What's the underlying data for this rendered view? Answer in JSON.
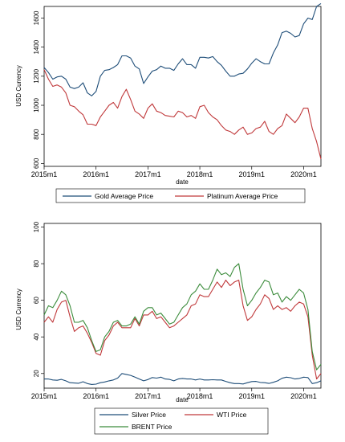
{
  "chart_data": [
    {
      "type": "line",
      "title": "",
      "xlabel": "date",
      "ylabel": "USD Currency",
      "x_range": [
        "2015-01",
        "2020-05"
      ],
      "ylim": [
        580,
        1680
      ],
      "x_ticks": [
        "2015m1",
        "2016m1",
        "2017m1",
        "2018m1",
        "2019m1",
        "2020m1"
      ],
      "y_ticks": [
        "600",
        "800",
        "1000",
        "1200",
        "1400",
        "1600"
      ],
      "grid": false,
      "legend_position": "bottom",
      "x": [
        "2015-01",
        "2015-02",
        "2015-03",
        "2015-04",
        "2015-05",
        "2015-06",
        "2015-07",
        "2015-08",
        "2015-09",
        "2015-10",
        "2015-11",
        "2015-12",
        "2016-01",
        "2016-02",
        "2016-03",
        "2016-04",
        "2016-05",
        "2016-06",
        "2016-07",
        "2016-08",
        "2016-09",
        "2016-10",
        "2016-11",
        "2016-12",
        "2017-01",
        "2017-02",
        "2017-03",
        "2017-04",
        "2017-05",
        "2017-06",
        "2017-07",
        "2017-08",
        "2017-09",
        "2017-10",
        "2017-11",
        "2017-12",
        "2018-01",
        "2018-02",
        "2018-03",
        "2018-04",
        "2018-05",
        "2018-06",
        "2018-07",
        "2018-08",
        "2018-09",
        "2018-10",
        "2018-11",
        "2018-12",
        "2019-01",
        "2019-02",
        "2019-03",
        "2019-04",
        "2019-05",
        "2019-06",
        "2019-07",
        "2019-08",
        "2019-09",
        "2019-10",
        "2019-11",
        "2019-12",
        "2020-01",
        "2020-02",
        "2020-03",
        "2020-04",
        "2020-05"
      ],
      "series": [
        {
          "name": "Gold Average Price",
          "color": "#1f4e79",
          "values": [
            1260,
            1225,
            1180,
            1195,
            1200,
            1180,
            1125,
            1115,
            1125,
            1155,
            1085,
            1065,
            1095,
            1200,
            1240,
            1245,
            1260,
            1280,
            1340,
            1340,
            1325,
            1270,
            1250,
            1150,
            1195,
            1235,
            1245,
            1270,
            1255,
            1255,
            1240,
            1285,
            1320,
            1280,
            1280,
            1255,
            1330,
            1330,
            1325,
            1335,
            1300,
            1275,
            1235,
            1200,
            1200,
            1215,
            1220,
            1250,
            1290,
            1320,
            1300,
            1285,
            1285,
            1360,
            1415,
            1500,
            1510,
            1495,
            1470,
            1480,
            1560,
            1600,
            1590,
            1680,
            1700
          ]
        },
        {
          "name": "Platinum Average Price",
          "color": "#c0393b",
          "values": [
            1245,
            1180,
            1130,
            1140,
            1125,
            1085,
            1000,
            990,
            960,
            935,
            870,
            870,
            860,
            920,
            960,
            1000,
            1020,
            980,
            1060,
            1110,
            1040,
            960,
            940,
            910,
            980,
            1010,
            960,
            950,
            930,
            925,
            920,
            960,
            950,
            920,
            930,
            910,
            990,
            1000,
            950,
            920,
            900,
            860,
            830,
            820,
            800,
            830,
            850,
            800,
            810,
            840,
            850,
            890,
            820,
            800,
            840,
            860,
            940,
            910,
            880,
            920,
            980,
            980,
            840,
            750,
            630
          ]
        }
      ]
    },
    {
      "type": "line",
      "title": "",
      "xlabel": "date",
      "ylabel": "USD Currency",
      "x_range": [
        "2015-01",
        "2020-05"
      ],
      "ylim": [
        12,
        102
      ],
      "x_ticks": [
        "2015m1",
        "2016m1",
        "2017m1",
        "2018m1",
        "2019m1",
        "2020m1"
      ],
      "y_ticks": [
        "20",
        "40",
        "60",
        "80",
        "100"
      ],
      "grid": false,
      "legend_position": "bottom",
      "x": [
        "2015-01",
        "2015-02",
        "2015-03",
        "2015-04",
        "2015-05",
        "2015-06",
        "2015-07",
        "2015-08",
        "2015-09",
        "2015-10",
        "2015-11",
        "2015-12",
        "2016-01",
        "2016-02",
        "2016-03",
        "2016-04",
        "2016-05",
        "2016-06",
        "2016-07",
        "2016-08",
        "2016-09",
        "2016-10",
        "2016-11",
        "2016-12",
        "2017-01",
        "2017-02",
        "2017-03",
        "2017-04",
        "2017-05",
        "2017-06",
        "2017-07",
        "2017-08",
        "2017-09",
        "2017-10",
        "2017-11",
        "2017-12",
        "2018-01",
        "2018-02",
        "2018-03",
        "2018-04",
        "2018-05",
        "2018-06",
        "2018-07",
        "2018-08",
        "2018-09",
        "2018-10",
        "2018-11",
        "2018-12",
        "2019-01",
        "2019-02",
        "2019-03",
        "2019-04",
        "2019-05",
        "2019-06",
        "2019-07",
        "2019-08",
        "2019-09",
        "2019-10",
        "2019-11",
        "2019-12",
        "2020-01",
        "2020-02",
        "2020-03",
        "2020-04",
        "2020-05"
      ],
      "series": [
        {
          "name": "Silver Price",
          "color": "#1f4e79",
          "values": [
            17,
            17,
            16.5,
            16.3,
            16.8,
            16,
            15,
            14.8,
            14.7,
            15.5,
            14.5,
            14,
            14.2,
            15,
            15.4,
            16,
            16.5,
            17.5,
            20,
            19.5,
            19,
            18,
            17,
            16,
            16.7,
            17.8,
            17.5,
            18,
            17,
            16.8,
            16,
            17,
            17.3,
            17,
            17,
            16.5,
            17,
            16.5,
            16.5,
            16.6,
            16.5,
            16.5,
            15.7,
            15,
            14.5,
            14.5,
            14.3,
            15,
            15.6,
            15.7,
            15.1,
            15,
            14.6,
            15.2,
            16,
            17.4,
            18,
            17.7,
            17,
            17.3,
            18,
            17.8,
            14.5,
            15,
            16
          ]
        },
        {
          "name": "WTI Price",
          "color": "#c0393b",
          "values": [
            48,
            51,
            48,
            55,
            59,
            60,
            51,
            43,
            45,
            46,
            42,
            37,
            31,
            30,
            38,
            41,
            46,
            48,
            45,
            45,
            45,
            50,
            46,
            52,
            52,
            54,
            50,
            51,
            48,
            45,
            46,
            48,
            50,
            52,
            57,
            58,
            63,
            62,
            62,
            66,
            70,
            67,
            71,
            68,
            70,
            71,
            57,
            49,
            51,
            55,
            58,
            63,
            61,
            55,
            57,
            55,
            56,
            54,
            57,
            59,
            58,
            51,
            30,
            17,
            20
          ]
        },
        {
          "name": "BRENT Price",
          "color": "#3c8c3c",
          "values": [
            52,
            57,
            56,
            60,
            65,
            63,
            57,
            48,
            48,
            49,
            45,
            38,
            32,
            33,
            40,
            43,
            48,
            49,
            46,
            46,
            47,
            51,
            47,
            54,
            56,
            56,
            52,
            53,
            50,
            47,
            48,
            52,
            56,
            58,
            63,
            65,
            69,
            66,
            66,
            71,
            77,
            74,
            75,
            73,
            78,
            80,
            66,
            57,
            60,
            64,
            67,
            71,
            70,
            63,
            64,
            59,
            62,
            60,
            63,
            66,
            64,
            55,
            32,
            22,
            25
          ]
        }
      ]
    }
  ]
}
